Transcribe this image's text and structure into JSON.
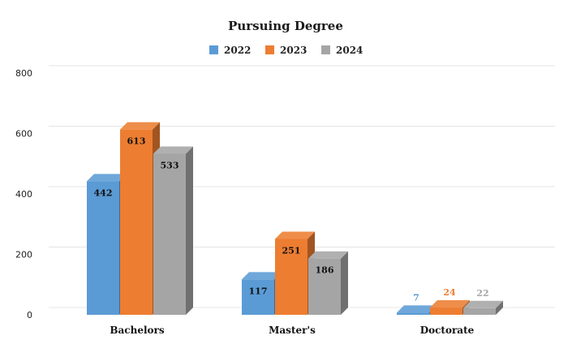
{
  "chart_data": {
    "type": "bar",
    "title": "Pursuing Degree",
    "categories": [
      "Bachelors",
      "Master's",
      "Doctorate"
    ],
    "series": [
      {
        "name": "2022",
        "values": [
          442,
          117,
          7
        ],
        "color": "#5B9BD5"
      },
      {
        "name": "2023",
        "values": [
          613,
          251,
          24
        ],
        "color": "#ED7D31"
      },
      {
        "name": "2024",
        "values": [
          533,
          186,
          22
        ],
        "color": "#A5A5A5"
      }
    ],
    "ylim": [
      0,
      800
    ],
    "yticks": [
      0,
      200,
      400,
      600,
      800
    ],
    "grid": true,
    "legend_position": "top-center",
    "style": "3d-clustered-column"
  }
}
